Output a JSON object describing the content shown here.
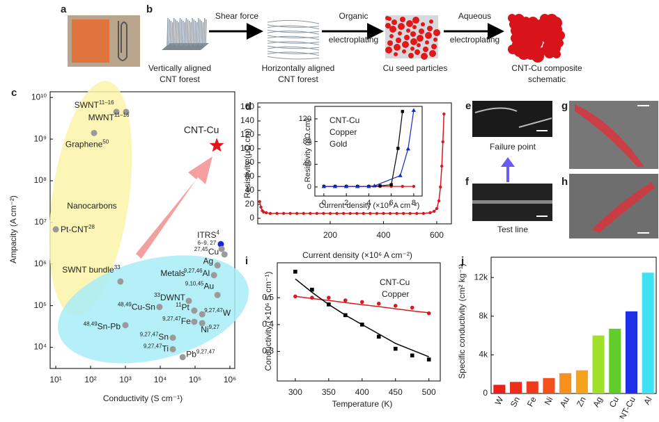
{
  "panel_labels": [
    "a",
    "b",
    "c",
    "d",
    "e",
    "f",
    "g",
    "h",
    "i",
    "j"
  ],
  "schematic": {
    "steps": [
      {
        "caption": [
          "Vertically aligned",
          "CNT forest"
        ]
      },
      {
        "caption": [
          "Horizontally aligned",
          "CNT forest"
        ]
      },
      {
        "caption": [
          "Cu seed particles"
        ]
      },
      {
        "caption": [
          "CNT-Cu composite",
          "schematic"
        ]
      }
    ],
    "arrows": [
      [
        "Shear force"
      ],
      [
        "Organic",
        "electroplating"
      ],
      [
        "Aqueous",
        "electroplating"
      ]
    ]
  },
  "micrographs": {
    "e_caption": "Failure point",
    "f_caption": "Test line"
  },
  "chart_data": [
    {
      "type": "scatter",
      "log_scale": true,
      "xlabel": "Conductivity (S cm⁻¹)",
      "ylabel": "Ampacity (A cm⁻²)",
      "xlim": [
        6.9,
        1380000
      ],
      "ylim": [
        3100,
        13700000000
      ],
      "xticks": [
        {
          "value": 10,
          "label": "10¹"
        },
        {
          "value": 100,
          "label": "10²"
        },
        {
          "value": 1000,
          "label": "10³"
        },
        {
          "value": 10000,
          "label": "10⁴"
        },
        {
          "value": 100000,
          "label": "10⁵"
        },
        {
          "value": 1000000,
          "label": "10⁶"
        }
      ],
      "yticks": [
        {
          "value": 10000,
          "label": "10⁴"
        },
        {
          "value": 100000,
          "label": "10⁵"
        },
        {
          "value": 1000000,
          "label": "10⁶"
        },
        {
          "value": 10000000,
          "label": "10⁷"
        },
        {
          "value": 100000000,
          "label": "10⁸"
        },
        {
          "value": 1000000000,
          "label": "10⁹"
        },
        {
          "value": 10000000000,
          "label": "10¹⁰"
        }
      ],
      "annotations": [
        "Nanocarbons",
        "Metals"
      ],
      "points": [
        {
          "label": "SWNT",
          "ref": "11–16",
          "x": 550,
          "y": 4500000000,
          "color": "#9a9a9a"
        },
        {
          "label": "MWNT",
          "ref": "11–16",
          "x": 1050,
          "y": 4500000000,
          "color": "#9a9a9a"
        },
        {
          "label": "Graphene",
          "ref": "50",
          "x": 126,
          "y": 1400000000,
          "color": "#9a9a9a"
        },
        {
          "label": "CNT-Cu",
          "ref": null,
          "x": 420000,
          "y": 700000000,
          "color": "#e3121c",
          "marker": "star"
        },
        {
          "label": "Pt-CNT",
          "ref": "28",
          "x": 10,
          "y": 6800000,
          "color": "#9a9a9a"
        },
        {
          "label": "ITRS",
          "ref": "4",
          "x": 550000,
          "y": 3000000,
          "color": "#1428e0"
        },
        {
          "label": "SWNT bundle",
          "ref": "33",
          "x": 720,
          "y": 380000,
          "color": "#9a9a9a"
        },
        {
          "label": "Cu",
          "ref": [
            "6–9, 27",
            "27,45"
          ],
          "x": 580000,
          "y": 2300000,
          "color": "#9a9a9a"
        },
        {
          "label": null,
          "ref": null,
          "x": 700000,
          "y": 1700000,
          "color": "#9a9a9a"
        },
        {
          "label": "Ag",
          "ref": null,
          "x": 440000,
          "y": 930000,
          "color": "#9a9a9a"
        },
        {
          "label": "Al",
          "ref": "9,27,46",
          "x": 350000,
          "y": 540000,
          "color": "#9a9a9a"
        },
        {
          "label": "Au",
          "ref": "9,10,45",
          "x": 440000,
          "y": 180000,
          "color": "#9a9a9a"
        },
        {
          "label": "DWNT",
          "ref": "33",
          "x": 66000,
          "y": 130000,
          "color": "#9a9a9a"
        },
        {
          "label": "Cu-Sn",
          "ref": "48,49",
          "x": 9500,
          "y": 93000,
          "color": "#9a9a9a"
        },
        {
          "label": "Pt",
          "ref": "11",
          "x": 95000,
          "y": 76000,
          "color": "#9a9a9a"
        },
        {
          "label": "W",
          "ref": "9,27,47",
          "x": 160000,
          "y": 62000,
          "color": "#9a9a9a"
        },
        {
          "label": "Fe",
          "ref": "9,27,47",
          "x": 95000,
          "y": 41000,
          "color": "#9a9a9a"
        },
        {
          "label": "Ni",
          "ref": "9,27",
          "x": 160000,
          "y": 38000,
          "color": "#9a9a9a"
        },
        {
          "label": "Sn-Pb",
          "ref": "48,49",
          "x": 1000,
          "y": 34000,
          "color": "#9a9a9a"
        },
        {
          "label": "Sn",
          "ref": "9,27,47",
          "x": 23000,
          "y": 17000,
          "color": "#9a9a9a"
        },
        {
          "label": "Ti",
          "ref": "9,27,47",
          "x": 23000,
          "y": 9000,
          "color": "#9a9a9a"
        },
        {
          "label": "Pb",
          "ref": "9,27,47",
          "x": 44000,
          "y": 5800,
          "color": "#9a9a9a"
        }
      ]
    },
    {
      "type": "line",
      "xlabel": "Current density (×10⁶ A cm⁻²)",
      "ylabel": "Resistivity (μΩ.cm)",
      "xlim": [
        -72,
        655
      ],
      "ylim": [
        -8,
        166
      ],
      "xticks": [
        200,
        400,
        600
      ],
      "yticks": [
        0,
        20,
        40,
        60,
        80,
        100,
        120,
        140,
        160
      ],
      "x": [
        -65,
        -60,
        -55,
        -50,
        -40,
        -25,
        0,
        25,
        50,
        75,
        100,
        125,
        150,
        175,
        200,
        225,
        250,
        275,
        300,
        325,
        350,
        375,
        400,
        425,
        450,
        475,
        500,
        525,
        550,
        575,
        590,
        600,
        608,
        614,
        619,
        623,
        627
      ],
      "series": [
        {
          "name": "CNT-Cu",
          "color": "#d71920",
          "marker": "circle",
          "values": [
            24,
            16,
            11,
            9,
            8,
            7,
            7,
            7,
            7,
            7,
            7,
            7,
            7,
            7,
            7,
            7,
            7,
            7,
            7,
            7,
            7,
            7,
            7,
            7,
            7,
            7,
            7,
            7,
            7,
            8,
            10,
            14,
            25,
            45,
            75,
            110,
            150
          ]
        }
      ]
    },
    {
      "type": "line",
      "xlabel": "Current density (×10⁶ A cm⁻²)",
      "ylabel": "Resistivity (μΩ.cm)",
      "xlim": [
        -0.8,
        8.75
      ],
      "ylim": [
        -16,
        142
      ],
      "xticks": [
        0,
        2,
        4,
        6,
        8
      ],
      "yticks": [
        0,
        40,
        80,
        120
      ],
      "series": [
        {
          "name": "CNT-Cu",
          "color": "#d71920",
          "marker": "circle",
          "x": [
            0,
            1,
            2,
            3,
            4,
            5,
            6,
            7,
            8
          ],
          "values": [
            1,
            1,
            1,
            1,
            1,
            1,
            1,
            1,
            1
          ]
        },
        {
          "name": "Copper",
          "color": "#000000",
          "marker": "square",
          "x": [
            0,
            1,
            2,
            3,
            4,
            5,
            6,
            6.6,
            7
          ],
          "values": [
            1,
            1,
            1,
            1,
            1,
            2,
            4,
            68,
            133
          ]
        },
        {
          "name": "Gold",
          "color": "#1428c8",
          "marker": "triangle",
          "x": [
            0,
            1,
            2,
            3,
            4,
            4.5,
            6.8,
            7.5,
            8
          ],
          "values": [
            1,
            1,
            1,
            1,
            1,
            2,
            20,
            67,
            135
          ]
        }
      ]
    },
    {
      "type": "scatter",
      "xlabel": "Temperature (K)",
      "ylabel": "Conductivity (×10⁶ S cm⁻¹)",
      "xlim": [
        273,
        517
      ],
      "ylim": [
        0.19,
        0.63
      ],
      "xticks": [
        300,
        350,
        400,
        450,
        500
      ],
      "yticks": [
        0.3,
        0.4,
        0.5
      ],
      "x": [
        300,
        325,
        350,
        375,
        400,
        425,
        450,
        475,
        500
      ],
      "series": [
        {
          "name": "CNT-Cu",
          "color": "#d71920",
          "marker": "circle",
          "values": [
            0.505,
            0.5,
            0.5,
            0.49,
            0.484,
            0.478,
            0.47,
            0.463,
            0.442
          ],
          "fit": [
            0.505,
            0.497,
            0.49,
            0.482,
            0.474,
            0.467,
            0.459,
            0.451,
            0.444
          ]
        },
        {
          "name": "Copper",
          "color": "#000000",
          "marker": "square",
          "values": [
            0.597,
            0.53,
            0.475,
            0.435,
            0.4,
            0.355,
            0.31,
            0.285,
            0.27
          ],
          "fit": [
            0.57,
            0.52,
            0.475,
            0.435,
            0.4,
            0.365,
            0.33,
            0.305,
            0.28
          ]
        }
      ]
    },
    {
      "type": "bar",
      "ylabel": "Specific conductivity (cm² kg⁻¹)",
      "ylim": [
        0,
        14100
      ],
      "yticks": [
        0,
        {
          "value": 4000,
          "label": "4k"
        },
        {
          "value": 8000,
          "label": "8k"
        },
        {
          "value": 12000,
          "label": "12k"
        }
      ],
      "categories": [
        "W",
        "Sn",
        "Fe",
        "Ni",
        "Au",
        "Zn",
        "Ag",
        "Cu",
        "CNT-Cu",
        "Al"
      ],
      "values": [
        900,
        1200,
        1250,
        1600,
        2100,
        2400,
        6000,
        6700,
        8500,
        12500
      ],
      "colors": [
        "#e8211a",
        "#ec2e1c",
        "#f03a1c",
        "#f5501c",
        "#f7901e",
        "#f5a21e",
        "#9ee02a",
        "#62cc2a",
        "#1e2fe8",
        "#3ee2f2"
      ]
    }
  ]
}
